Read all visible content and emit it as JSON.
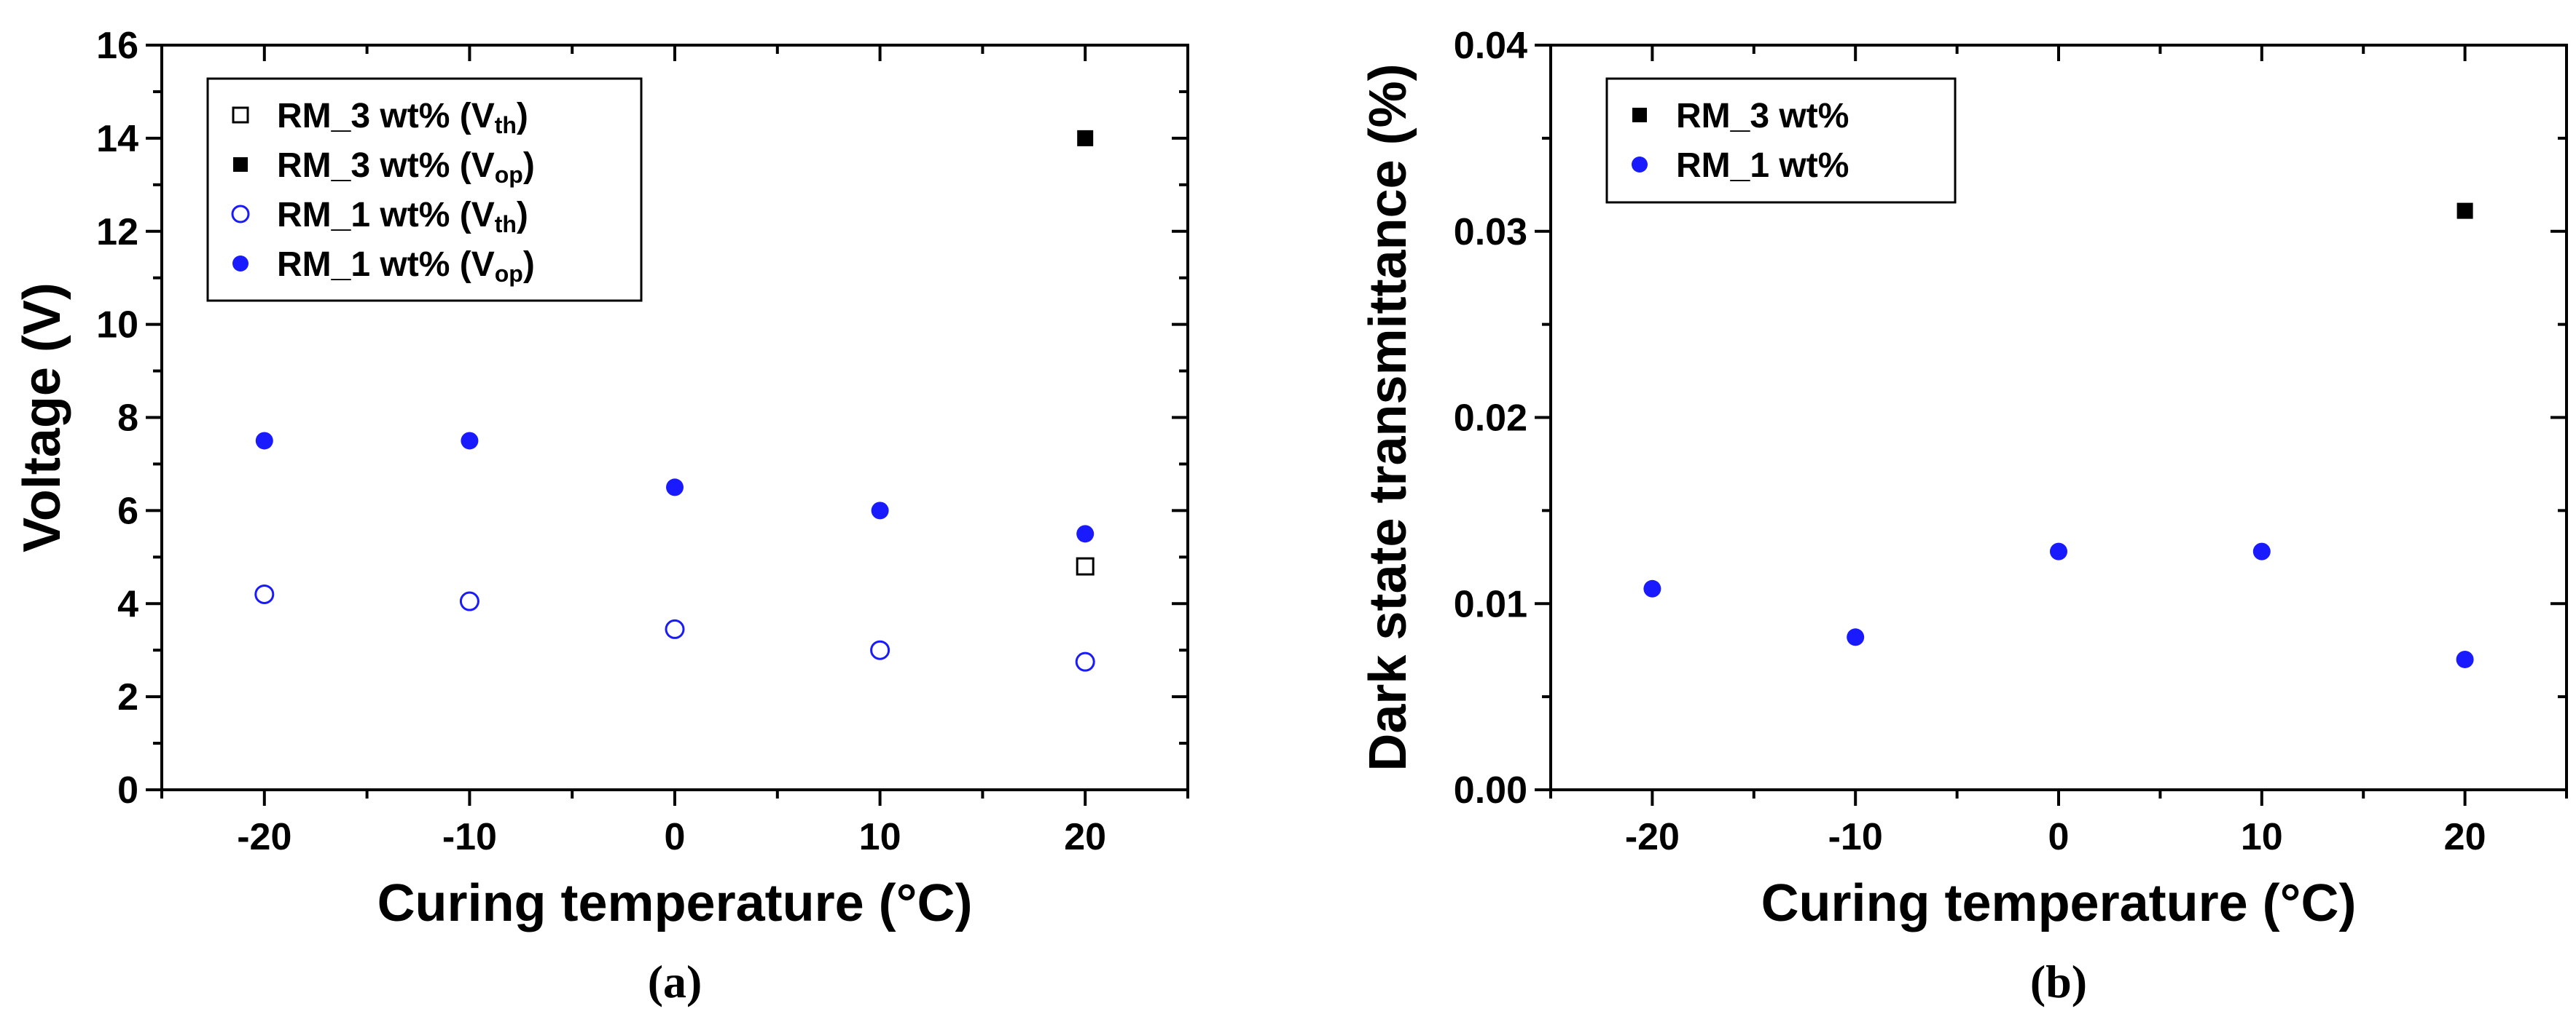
{
  "chart_data": [
    {
      "type": "scatter",
      "panel": "a",
      "caption": "(a)",
      "xlabel": "Curing temperature (°C)",
      "ylabel": "Voltage (V)",
      "xlim": [
        -25,
        25
      ],
      "ylim": [
        0,
        16
      ],
      "xticks": [
        "-20",
        "-10",
        "0",
        "10",
        "20"
      ],
      "yticks": [
        "0",
        "2",
        "4",
        "6",
        "8",
        "10",
        "12",
        "14",
        "16"
      ],
      "legend_position": "top-left",
      "series": [
        {
          "name": "RM_3 wt% (V",
          "sub": "th",
          "tail": ")",
          "marker": "square-open",
          "color": "#000000",
          "x": [
            20
          ],
          "y": [
            4.8
          ]
        },
        {
          "name": "RM_3 wt% (V",
          "sub": "op",
          "tail": ")",
          "marker": "square-filled",
          "color": "#000000",
          "x": [
            20
          ],
          "y": [
            14.0
          ]
        },
        {
          "name": "RM_1 wt% (V",
          "sub": "th",
          "tail": ")",
          "marker": "circle-open",
          "color": "#1a1aff",
          "x": [
            -20,
            -10,
            0,
            10,
            20
          ],
          "y": [
            4.2,
            4.05,
            3.45,
            3.0,
            2.75
          ]
        },
        {
          "name": "RM_1 wt% (V",
          "sub": "op",
          "tail": ")",
          "marker": "circle-filled",
          "color": "#1a1aff",
          "x": [
            -20,
            -10,
            0,
            10,
            20
          ],
          "y": [
            7.5,
            7.5,
            6.5,
            6.0,
            5.5
          ]
        }
      ]
    },
    {
      "type": "scatter",
      "panel": "b",
      "caption": "(b)",
      "xlabel": "Curing temperature (°C)",
      "ylabel": "Dark state transmittance (%)",
      "xlim": [
        -25,
        25
      ],
      "ylim": [
        0,
        0.04
      ],
      "xticks": [
        "-20",
        "-10",
        "0",
        "10",
        "20"
      ],
      "yticks": [
        "0.00",
        "0.01",
        "0.02",
        "0.03",
        "0.04"
      ],
      "legend_position": "top-left",
      "series": [
        {
          "name": "RM_3 wt%",
          "sub": "",
          "tail": "",
          "marker": "square-filled",
          "color": "#000000",
          "x": [
            20
          ],
          "y": [
            0.0311
          ]
        },
        {
          "name": "RM_1 wt%",
          "sub": "",
          "tail": "",
          "marker": "circle-filled",
          "color": "#1a1aff",
          "x": [
            -20,
            -10,
            0,
            10,
            20
          ],
          "y": [
            0.0108,
            0.0082,
            0.0128,
            0.0128,
            0.007
          ]
        }
      ]
    }
  ]
}
